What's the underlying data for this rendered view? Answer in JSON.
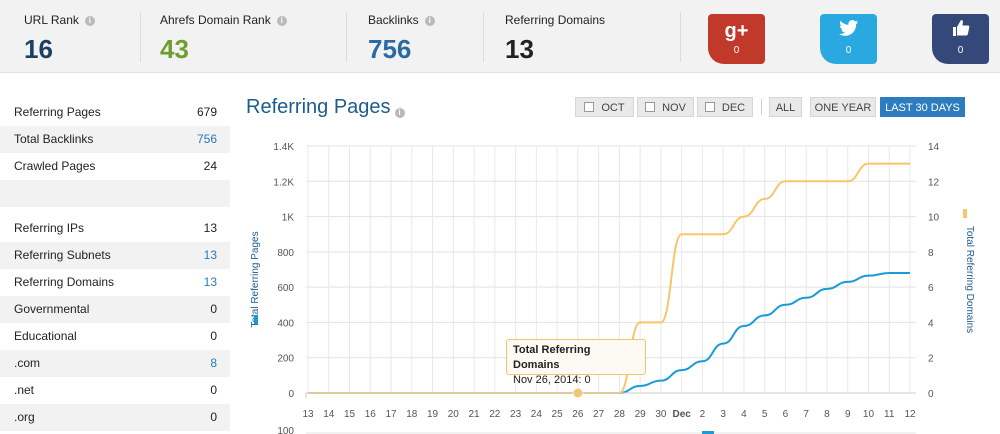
{
  "stats": [
    {
      "label": "URL Rank",
      "value": "16",
      "color": "#1d3f66"
    },
    {
      "label": "Ahrefs Domain Rank",
      "value": "43",
      "color": "#6f9e2e"
    },
    {
      "label": "Backlinks",
      "value": "756",
      "color": "#2a6aa3"
    },
    {
      "label": "Referring Domains",
      "value": "13",
      "color": "#222222"
    }
  ],
  "stat_info_glyph": "i",
  "social": [
    {
      "name": "google-plus",
      "glyph": "g+",
      "count": "0",
      "color": "#c0392b"
    },
    {
      "name": "twitter",
      "glyph": "t",
      "count": "0",
      "color": "#2aa9e0"
    },
    {
      "name": "facebook-like",
      "glyph": "👍",
      "count": "0",
      "color": "#34497a"
    }
  ],
  "metrics_group1": [
    {
      "label": "Referring Pages",
      "value": "679",
      "link": false
    },
    {
      "label": "Total Backlinks",
      "value": "756",
      "link": true
    },
    {
      "label": "Crawled Pages",
      "value": "24",
      "link": false
    }
  ],
  "metrics_group2": [
    {
      "label": "Referring IPs",
      "value": "13",
      "link": false
    },
    {
      "label": "Referring Subnets",
      "value": "13",
      "link": true
    },
    {
      "label": "Referring Domains",
      "value": "13",
      "link": true
    },
    {
      "label": "Governmental",
      "value": "0",
      "link": false
    },
    {
      "label": "Educational",
      "value": "0",
      "link": false
    },
    {
      "label": ".com",
      "value": "8",
      "link": true
    },
    {
      "label": ".net",
      "value": "0",
      "link": false
    },
    {
      "label": ".org",
      "value": "0",
      "link": false
    }
  ],
  "chart": {
    "title": "Referring Pages",
    "filters": {
      "oct": "OCT",
      "nov": "NOV",
      "dec": "DEC",
      "all": "ALL",
      "one_year": "ONE YEAR",
      "last_30": "LAST 30 DAYS"
    },
    "tooltip": {
      "title": "Total Referring Domains",
      "body": "Nov 26, 2014: 0"
    },
    "next_axis_label": "100"
  },
  "chart_data": {
    "type": "line",
    "x": [
      "13",
      "14",
      "15",
      "16",
      "17",
      "18",
      "19",
      "20",
      "21",
      "22",
      "23",
      "24",
      "25",
      "26",
      "27",
      "28",
      "29",
      "30",
      "Dec",
      "2",
      "3",
      "4",
      "5",
      "6",
      "7",
      "8",
      "9",
      "10",
      "11",
      "12"
    ],
    "y_left": {
      "label": "Total Referring Pages",
      "ticks": [
        "0",
        "200",
        "400",
        "600",
        "800",
        "1K",
        "1.2K",
        "1.4K"
      ],
      "range": [
        0,
        1400
      ]
    },
    "y_right": {
      "label": "Total Referring Domains",
      "ticks": [
        "0",
        "2",
        "4",
        "6",
        "8",
        "10",
        "12",
        "14"
      ],
      "range": [
        0,
        14
      ]
    },
    "series": [
      {
        "name": "Total Referring Pages",
        "axis": "left",
        "color": "#1a9bd7",
        "values": [
          0,
          0,
          0,
          0,
          0,
          0,
          0,
          0,
          0,
          0,
          0,
          0,
          0,
          0,
          0,
          0,
          40,
          70,
          130,
          180,
          280,
          380,
          440,
          500,
          540,
          590,
          630,
          665,
          680,
          680
        ]
      },
      {
        "name": "Total Referring Domains",
        "axis": "right",
        "color": "#f9c56b",
        "values": [
          0,
          0,
          0,
          0,
          0,
          0,
          0,
          0,
          0,
          0,
          0,
          0,
          0,
          0,
          0,
          0,
          4,
          4,
          9,
          9,
          9,
          10,
          11,
          12,
          12,
          12,
          12,
          13,
          13,
          13
        ]
      }
    ],
    "highlight": {
      "series": "Total Referring Domains",
      "x": "26",
      "value": 0
    },
    "grid": true,
    "legend": "axis-labels"
  }
}
